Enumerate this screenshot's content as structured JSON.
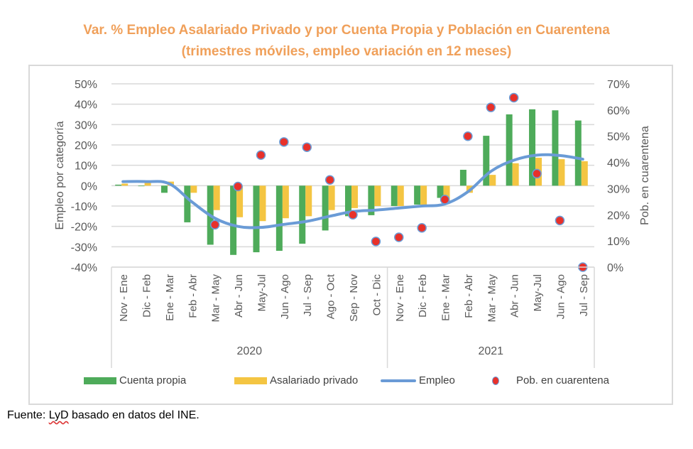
{
  "title": {
    "line1": "Var. % Empleo Asalariado Privado y por Cuenta Propia y Población en Cuarentena",
    "line2": "(trimestres móviles, empleo variación en 12 meses)"
  },
  "source": {
    "prefix": "Fuente: ",
    "flagged_word": "LyD",
    "suffix": " basado en datos del INE."
  },
  "colors": {
    "cuenta_propia": "#4EAB5A",
    "asalariado_privado": "#F4C542",
    "empleo": "#6A9BD6",
    "cuarentena_fill": "#E8312A",
    "cuarentena_border": "#6A9BD6",
    "gridline": "#d9d9d9",
    "title": "#F0A05A",
    "axis_text": "#595959"
  },
  "chart_data": {
    "type": "bar",
    "title": "Var. % Empleo Asalariado Privado y por Cuenta Propia y Población en Cuarentena (trimestres móviles, empleo variación en 12 meses)",
    "categories": [
      "Nov - Ene",
      "Dic - Feb",
      "Ene - Mar",
      "Feb - Abr",
      "Mar - May",
      "Abr - Jun",
      "May-Jul",
      "Jun - Ago",
      "Jul - Sep",
      "Ago - Oct",
      "Sep - Nov",
      "Oct - Dic",
      "Nov - Ene",
      "Dic - Feb",
      "Ene - Mar",
      "Feb - Abr",
      "Mar - May",
      "Abr - Jun",
      "May-Jul",
      "Jun - Ago",
      "Jul - Sep"
    ],
    "groups": [
      {
        "label": "2020",
        "count": 12
      },
      {
        "label": "2021",
        "count": 9
      }
    ],
    "ylabel": "Empleo por categoría",
    "y2label": "Pob. en cuarentena",
    "ylim": [
      -40,
      50
    ],
    "y2lim": [
      0,
      70
    ],
    "yticks": [
      "50%",
      "40%",
      "30%",
      "20%",
      "10%",
      "0%",
      "-10%",
      "-20%",
      "-30%",
      "-40%"
    ],
    "y2ticks": [
      "70%",
      "60%",
      "50%",
      "40%",
      "30%",
      "20%",
      "10%",
      "0%"
    ],
    "yticks_values": [
      50,
      40,
      30,
      20,
      10,
      0,
      -10,
      -20,
      -30,
      -40
    ],
    "y2ticks_values": [
      70,
      60,
      50,
      40,
      30,
      20,
      10,
      0
    ],
    "grid": true,
    "legend_position": "bottom",
    "series": [
      {
        "name": "Cuenta propia",
        "type": "bar",
        "axis": "left",
        "values": [
          0.5,
          0,
          -3.5,
          -18,
          -29,
          -34,
          -32.7,
          -32,
          -28.5,
          -22,
          -15,
          -14.5,
          -10,
          -9.3,
          -6,
          7.8,
          24.5,
          35,
          37.5,
          37,
          32
        ]
      },
      {
        "name": "Asalariado privado",
        "type": "bar",
        "axis": "left",
        "values": [
          1,
          2.5,
          2,
          -3.5,
          -12,
          -15.5,
          -17.4,
          -16,
          -15,
          -12,
          -11,
          -10,
          -10,
          -9.5,
          -9,
          -3.5,
          5.3,
          11,
          13.7,
          13,
          12
        ]
      },
      {
        "name": "Empleo",
        "type": "line",
        "axis": "left",
        "values": [
          2,
          2,
          1,
          -8,
          -16,
          -20,
          -20.5,
          -19,
          -17.5,
          -15,
          -12.7,
          -12,
          -11,
          -10,
          -9,
          -3,
          7,
          12.5,
          15,
          14.8,
          13
        ]
      },
      {
        "name": "Pob. en cuarentena",
        "type": "scatter",
        "axis": "right",
        "values": [
          null,
          null,
          null,
          null,
          16.2,
          30.8,
          42.8,
          47.8,
          45.8,
          33.3,
          20,
          9.8,
          11.4,
          15,
          25.8,
          50,
          61,
          64.7,
          35.7,
          17.8,
          0
        ]
      }
    ]
  }
}
